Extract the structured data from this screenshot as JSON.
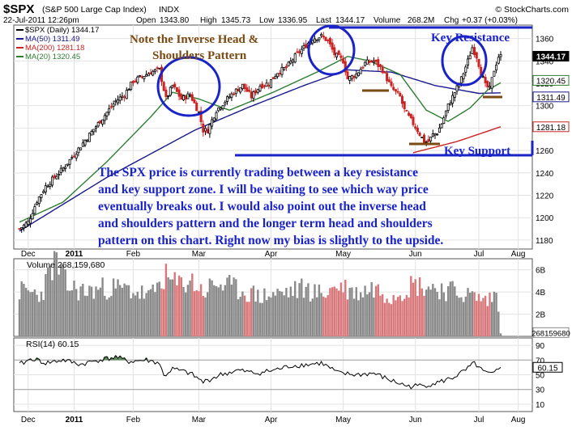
{
  "header": {
    "symbol": "$SPX",
    "name": "(S&P 500 Large Cap Index)",
    "exchange": "INDX",
    "brand": "© StockCharts.com",
    "date": "22-Jul-2011 12:26pm",
    "open_label": "Open",
    "open": "1343.80",
    "high_label": "High",
    "high": "1345.73",
    "low_label": "Low",
    "low": "1336.95",
    "last_label": "Last",
    "last": "1344.17",
    "volume_label": "Volume",
    "volume": "268.2M",
    "chg_label": "Chg",
    "chg": "+0.37 (+0.03%)"
  },
  "legend": [
    {
      "text": "$SPX (Daily) 1344.17",
      "color": "#000000"
    },
    {
      "text": "MA(50) 1311.49",
      "color": "#1a1a8c"
    },
    {
      "text": "MA(200) 1281.18",
      "color": "#cc2222"
    },
    {
      "text": "MA(20) 1320.45",
      "color": "#2e7d32"
    }
  ],
  "annotations": {
    "pattern_line1": "Note the Inverse Head &",
    "pattern_line2": "Shoulders Pattern",
    "key_resistance": "Key Resistance",
    "key_support": "Key Support",
    "commentary": [
      "The SPX price is currently trading between a key resistance",
      "and key support zone. I will be waiting to see which way price",
      "eventually breaks out. I would also point out the inverse head",
      "and shoulders pattern and the longer term head and shoulders",
      "pattern on this chart. Right now my bias is slightly to the upside."
    ]
  },
  "colors": {
    "up": "#000000",
    "down": "#cc2222",
    "ma50": "#1a1a8c",
    "ma200": "#cc2222",
    "ma20": "#2e7d32",
    "annotation_blue": "#1a23c8",
    "annotation_brown": "#7a4a12",
    "vol_up": "#8a8a8a",
    "vol_down": "#d9787a",
    "rsi_fill": "#5a8a5a"
  },
  "volume_panel": {
    "label": "Volume 268,159,680",
    "last_tag": "268159680"
  },
  "rsi_panel": {
    "label": "RSI(14) 60.15",
    "last_tag": "60.15"
  },
  "chart_data": [
    {
      "type": "candlestick",
      "title": "$SPX (Daily) 1344.17",
      "x_tick_labels": [
        "Dec",
        "2011",
        "Feb",
        "Mar",
        "Apr",
        "May",
        "Jun",
        "Jul",
        "Aug"
      ],
      "y_tick_labels": [
        "1360",
        "1340",
        "1320",
        "1300",
        "1280",
        "1260",
        "1240",
        "1220",
        "1200",
        "1180"
      ],
      "ylim": [
        1172,
        1372
      ],
      "scale": "linear",
      "price_tags": [
        {
          "label": "MA(50)",
          "value": 1311.49,
          "text": "1311.49"
        },
        {
          "label": "MA(20)",
          "value": 1320.45,
          "text": "1320.45"
        },
        {
          "label": "MA(200)",
          "value": 1281.18,
          "text": "1281.18"
        },
        {
          "label": "Last",
          "value": 1344.17,
          "text": "1344.17"
        }
      ],
      "key_resistance": 1370,
      "key_support": 1258,
      "close_anchors": [
        [
          0,
          1190
        ],
        [
          4,
          1196
        ],
        [
          8,
          1215
        ],
        [
          12,
          1228
        ],
        [
          16,
          1236
        ],
        [
          20,
          1244
        ],
        [
          24,
          1254
        ],
        [
          28,
          1264
        ],
        [
          32,
          1274
        ],
        [
          36,
          1284
        ],
        [
          40,
          1294
        ],
        [
          44,
          1304
        ],
        [
          48,
          1310
        ],
        [
          52,
          1322
        ],
        [
          56,
          1326
        ],
        [
          60,
          1330
        ],
        [
          64,
          1332
        ],
        [
          67,
          1306
        ],
        [
          70,
          1318
        ],
        [
          74,
          1306
        ],
        [
          78,
          1310
        ],
        [
          82,
          1294
        ],
        [
          84,
          1278
        ],
        [
          86,
          1278
        ],
        [
          90,
          1296
        ],
        [
          94,
          1304
        ],
        [
          98,
          1312
        ],
        [
          102,
          1318
        ],
        [
          106,
          1308
        ],
        [
          110,
          1318
        ],
        [
          114,
          1320
        ],
        [
          118,
          1330
        ],
        [
          122,
          1334
        ],
        [
          126,
          1344
        ],
        [
          130,
          1352
        ],
        [
          134,
          1360
        ],
        [
          138,
          1362
        ],
        [
          141,
          1358
        ],
        [
          144,
          1346
        ],
        [
          148,
          1340
        ],
        [
          150,
          1324
        ],
        [
          154,
          1328
        ],
        [
          158,
          1338
        ],
        [
          162,
          1340
        ],
        [
          166,
          1332
        ],
        [
          170,
          1316
        ],
        [
          174,
          1308
        ],
        [
          176,
          1296
        ],
        [
          178,
          1290
        ],
        [
          182,
          1278
        ],
        [
          185,
          1268
        ],
        [
          187,
          1268
        ],
        [
          189,
          1274
        ],
        [
          191,
          1276
        ],
        [
          193,
          1284
        ],
        [
          196,
          1300
        ],
        [
          199,
          1312
        ],
        [
          202,
          1324
        ],
        [
          205,
          1340
        ],
        [
          207,
          1352
        ],
        [
          209,
          1344
        ],
        [
          211,
          1330
        ],
        [
          213,
          1318
        ],
        [
          215,
          1315
        ],
        [
          217,
          1332
        ],
        [
          219,
          1344
        ],
        [
          220,
          1344.17
        ]
      ],
      "series": [
        {
          "name": "MA(50)",
          "values": [
            [
              0,
              1188
            ],
            [
              40,
              1236
            ],
            [
              80,
              1278
            ],
            [
              104,
              1298
            ],
            [
              130,
              1318
            ],
            [
              150,
              1332
            ],
            [
              170,
              1330
            ],
            [
              190,
              1318
            ],
            [
              210,
              1311
            ],
            [
              220,
              1311.49
            ]
          ]
        },
        {
          "name": "MA(20)",
          "values": [
            [
              0,
              1196
            ],
            [
              20,
              1214
            ],
            [
              40,
              1250
            ],
            [
              60,
              1290
            ],
            [
              70,
              1312
            ],
            [
              82,
              1306
            ],
            [
              96,
              1296
            ],
            [
              116,
              1312
            ],
            [
              136,
              1330
            ],
            [
              150,
              1344
            ],
            [
              160,
              1340
            ],
            [
              174,
              1328
            ],
            [
              186,
              1296
            ],
            [
              196,
              1286
            ],
            [
              206,
              1298
            ],
            [
              214,
              1314
            ],
            [
              220,
              1320.45
            ]
          ]
        },
        {
          "name": "MA(200)",
          "values": [
            [
              180,
              1258
            ],
            [
              200,
              1268
            ],
            [
              220,
              1281.18
            ]
          ]
        }
      ]
    },
    {
      "type": "bar",
      "title": "Volume 268,159,680",
      "y_tick_labels": [
        "6B",
        "4B",
        "2B"
      ],
      "ylim": [
        0,
        7000000000
      ],
      "last_value": 268159680,
      "values_anchor_B": [
        [
          0,
          4.1
        ],
        [
          10,
          3.8
        ],
        [
          16,
          6.8
        ],
        [
          22,
          4.5
        ],
        [
          30,
          4.0
        ],
        [
          40,
          4.4
        ],
        [
          50,
          4.2
        ],
        [
          60,
          3.6
        ],
        [
          66,
          5.4
        ],
        [
          72,
          4.6
        ],
        [
          78,
          5.1
        ],
        [
          84,
          4.0
        ],
        [
          90,
          4.8
        ],
        [
          100,
          4.2
        ],
        [
          110,
          3.6
        ],
        [
          120,
          3.9
        ],
        [
          130,
          4.3
        ],
        [
          138,
          3.8
        ],
        [
          146,
          4.6
        ],
        [
          154,
          3.9
        ],
        [
          162,
          4.4
        ],
        [
          170,
          3.7
        ],
        [
          180,
          4.7
        ],
        [
          190,
          4.4
        ],
        [
          200,
          4.0
        ],
        [
          208,
          3.6
        ],
        [
          214,
          3.2
        ],
        [
          218,
          3.9
        ],
        [
          220,
          0.27
        ]
      ]
    },
    {
      "type": "line",
      "title": "RSI(14) 60.15",
      "y_tick_labels": [
        "90",
        "70",
        "50",
        "30",
        "10"
      ],
      "ylim": [
        0,
        100
      ],
      "overbought": 70,
      "oversold": 30,
      "last_value": 60.15,
      "values_anchor": [
        [
          0,
          64
        ],
        [
          6,
          72
        ],
        [
          12,
          66
        ],
        [
          20,
          70
        ],
        [
          28,
          64
        ],
        [
          36,
          70
        ],
        [
          44,
          74
        ],
        [
          50,
          68
        ],
        [
          58,
          70
        ],
        [
          64,
          66
        ],
        [
          66,
          48
        ],
        [
          70,
          58
        ],
        [
          78,
          52
        ],
        [
          84,
          40
        ],
        [
          92,
          50
        ],
        [
          100,
          56
        ],
        [
          108,
          52
        ],
        [
          116,
          56
        ],
        [
          124,
          62
        ],
        [
          132,
          64
        ],
        [
          138,
          66
        ],
        [
          146,
          52
        ],
        [
          154,
          50
        ],
        [
          162,
          52
        ],
        [
          170,
          42
        ],
        [
          178,
          34
        ],
        [
          186,
          36
        ],
        [
          192,
          40
        ],
        [
          198,
          46
        ],
        [
          204,
          56
        ],
        [
          208,
          66
        ],
        [
          212,
          54
        ],
        [
          216,
          50
        ],
        [
          220,
          60.15
        ]
      ]
    }
  ]
}
